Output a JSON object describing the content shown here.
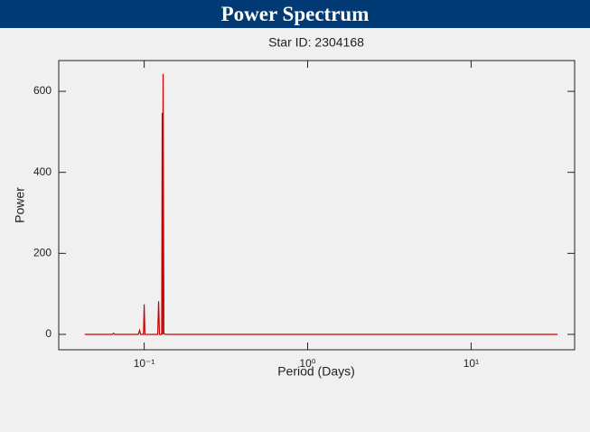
{
  "header": {
    "title": "Power Spectrum"
  },
  "chart_data": {
    "type": "line",
    "title": "Star ID: 2304168",
    "x_label": "Period (Days)",
    "y_label": "Power",
    "x": [
      0.0433,
      0.064,
      0.065,
      0.066,
      0.092,
      0.0938,
      0.095,
      0.099,
      0.1,
      0.101,
      0.121,
      0.1225,
      0.124,
      0.128,
      0.1289,
      0.1297,
      0.1305,
      0.132,
      0.135,
      33.8
    ],
    "series": [
      {
        "name": "Power",
        "color": "#cc0000",
        "values": [
          0,
          0,
          3,
          0,
          0,
          10,
          0,
          0,
          74,
          0,
          0,
          82,
          0,
          0,
          547,
          0,
          643,
          2,
          0,
          0
        ]
      }
    ],
    "xlog": true,
    "xlim": [
      0.03,
      43
    ],
    "xticks": [
      {
        "value": 0.1,
        "label": "10⁻¹"
      },
      {
        "value": 1,
        "label": "10⁰"
      },
      {
        "value": 10,
        "label": "10¹"
      }
    ],
    "ylim": [
      -38,
      676
    ],
    "yticks": [
      0,
      200,
      400,
      600
    ],
    "grid": false
  }
}
